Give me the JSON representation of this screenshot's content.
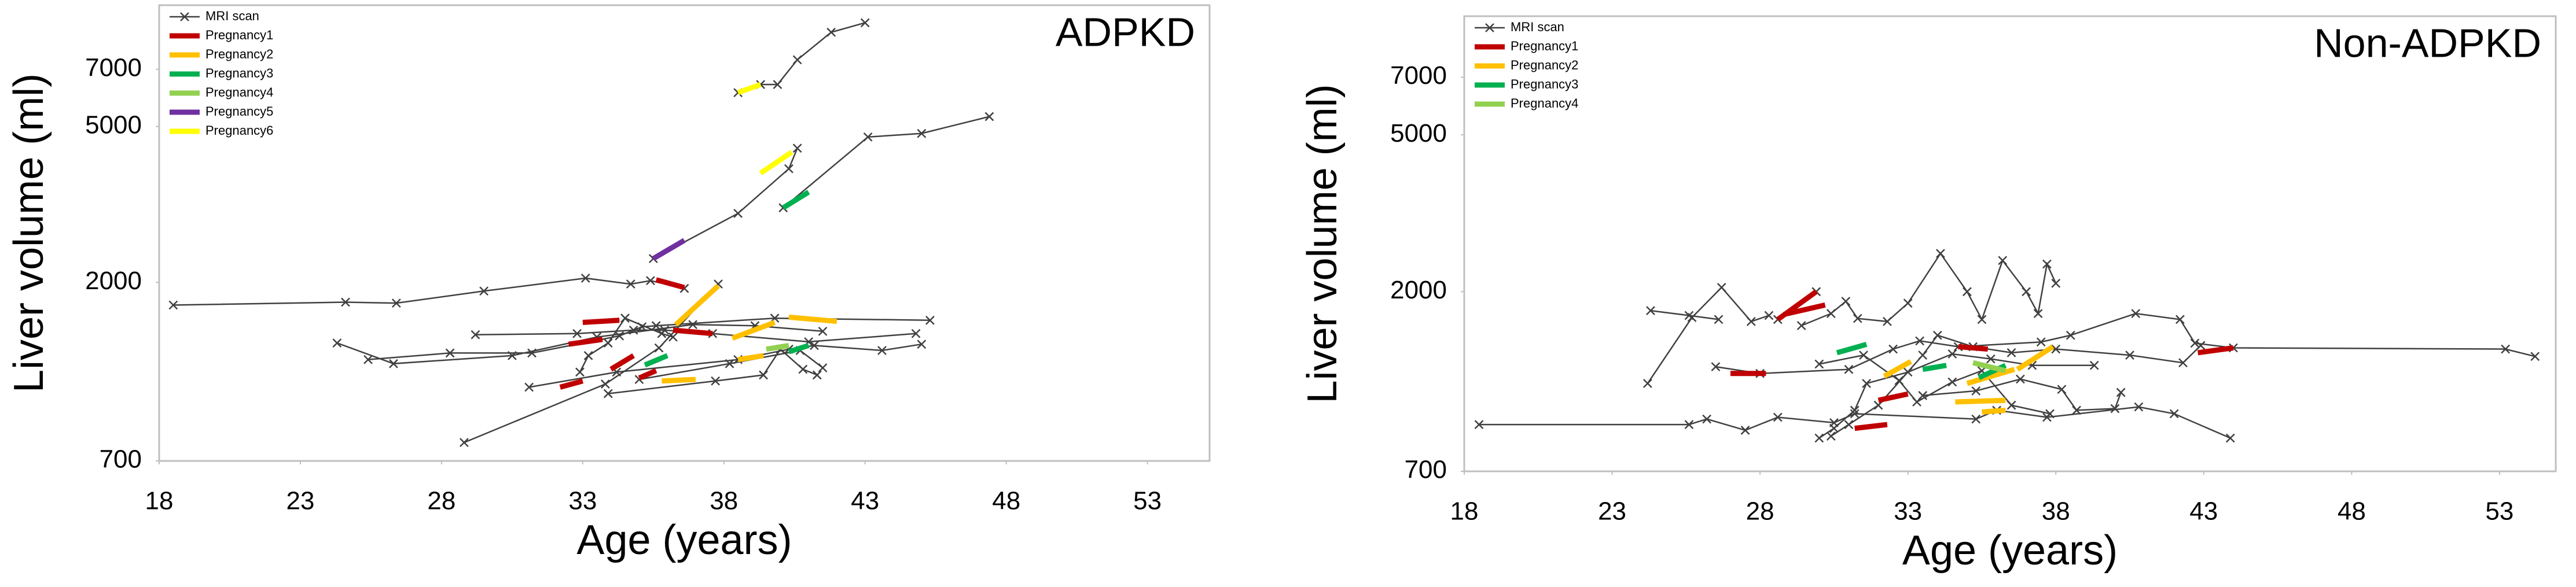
{
  "chart_data": [
    {
      "type": "line",
      "title": "ADPKD",
      "x_label": "Age (years)",
      "y_label": "Liver volume (ml)",
      "log_y": true,
      "xlim": [
        18,
        55.2
      ],
      "ylim": [
        700,
        10200
      ],
      "xticks": [
        18,
        23,
        28,
        33,
        38,
        43,
        48,
        53
      ],
      "yticks": [
        700,
        2000,
        5000,
        7000
      ],
      "legend": "top-left",
      "series": [
        {
          "name": "MRI scan",
          "color": "#404040",
          "marker": "x",
          "x": [
            18.5,
            24.6,
            26.4,
            29.5,
            33.1,
            34.7,
            35.4,
            36.6,
            null,
            28.8,
            33.8,
            35.7,
            37.8,
            null,
            35.5,
            38.5,
            40.3,
            40.6,
            null,
            40.1,
            43.1,
            45,
            47.4,
            null,
            38.5,
            39.3,
            39.9,
            40.6,
            41.8,
            43,
            null,
            24.3,
            26.3,
            30.5,
            33.5,
            36.9,
            39.1,
            41.5,
            null,
            25.4,
            28.3,
            31.2,
            34.3,
            35.1,
            35.6,
            39.8,
            45.3,
            null,
            29.2,
            32.8,
            34.8,
            35.9,
            37.6,
            41,
            44.8,
            null,
            31.1,
            34.2,
            38.5,
            40.3,
            41.2,
            43.6,
            45,
            null,
            32.9,
            33.2,
            33.9,
            34.5,
            35.8,
            36.2,
            null,
            33.9,
            37.7,
            39.4,
            40,
            40.8,
            41.3,
            null,
            35,
            38.2,
            40.7,
            41.5
          ],
          "values": [
            1750,
            1780,
            1770,
            1900,
            2050,
            1980,
            2020,
            1930,
            null,
            780,
            1100,
            1360,
            1980,
            null,
            2300,
            3000,
            3900,
            4400,
            null,
            3100,
            4700,
            4800,
            5300,
            null,
            6100,
            6400,
            6400,
            7400,
            8700,
            9200,
            null,
            1400,
            1240,
            1300,
            1450,
            1560,
            1550,
            1500,
            null,
            1270,
            1320,
            1320,
            1460,
            1540,
            1550,
            1620,
            1600,
            null,
            1470,
            1480,
            1510,
            1510,
            1480,
            1410,
            1480,
            null,
            1080,
            1180,
            1270,
            1350,
            1380,
            1340,
            1390,
            null,
            1180,
            1300,
            1400,
            1620,
            1480,
            1450,
            null,
            1040,
            1120,
            1160,
            1350,
            1200,
            1160,
            null,
            1130,
            1240,
            1340,
            1210
          ]
        },
        {
          "name": "Pregnancy1",
          "color": "#c00000",
          "x": [
            35.6,
            36.6,
            null,
            33,
            34.3,
            null,
            32.5,
            33.7,
            null,
            36.2,
            37.6,
            null,
            34,
            34.8,
            null,
            32.2,
            33,
            null,
            35,
            35.6
          ],
          "values": [
            2030,
            1940,
            null,
            1580,
            1600,
            null,
            1390,
            1430,
            null,
            1510,
            1480,
            null,
            1200,
            1300,
            null,
            1080,
            1120,
            null,
            1140,
            1190
          ]
        },
        {
          "name": "Pregnancy2",
          "color": "#ffc000",
          "x": [
            36.3,
            37.8,
            null,
            40.3,
            42,
            null,
            35.8,
            37,
            null,
            38.5,
            39.4,
            null,
            38.3,
            39.8
          ],
          "values": [
            1560,
            1960,
            null,
            1630,
            1590,
            null,
            1120,
            1130,
            null,
            1270,
            1300,
            null,
            1440,
            1580
          ]
        },
        {
          "name": "Pregnancy3",
          "color": "#00b050",
          "x": [
            40.1,
            41,
            null,
            35.2,
            36,
            null,
            40.3,
            41
          ],
          "values": [
            3100,
            3400,
            null,
            1230,
            1300,
            null,
            1330,
            1380
          ]
        },
        {
          "name": "Pregnancy4",
          "color": "#92d050",
          "x": [
            39.5,
            40.3
          ],
          "values": [
            1350,
            1380
          ]
        },
        {
          "name": "Pregnancy5",
          "color": "#7030a0",
          "x": [
            35.5,
            36.6
          ],
          "values": [
            2300,
            2560
          ]
        },
        {
          "name": "Pregnancy6",
          "color": "#ffff00",
          "x": [
            39.3,
            40.4,
            null,
            38.5,
            39.3
          ],
          "values": [
            3800,
            4300,
            null,
            6100,
            6400
          ]
        }
      ]
    },
    {
      "type": "line",
      "title": "Non-ADPKD",
      "x_label": "Age (years)",
      "y_label": "Liver volume (ml)",
      "log_y": true,
      "xlim": [
        18,
        54.9
      ],
      "ylim": [
        700,
        10000
      ],
      "xticks": [
        18,
        23,
        28,
        33,
        38,
        43,
        48,
        53
      ],
      "yticks": [
        700,
        2000,
        5000,
        7000
      ],
      "legend": "top-left",
      "series": [
        {
          "name": "MRI scan",
          "color": "#404040",
          "marker": "x",
          "x": [
            18.5,
            25.6,
            26.2,
            27.5,
            28.6,
            30.5,
            31.2,
            35.3,
            36,
            37.7,
            40.8,
            42,
            43.9,
            null,
            24.2,
            25.7,
            26.7,
            27.7,
            28.3,
            null,
            24.3,
            25.6,
            26.6,
            null,
            28.6,
            29.9,
            null,
            29.4,
            30.4,
            30.9,
            31.3,
            32.3,
            33,
            34.1,
            35,
            35.5,
            36.2,
            37,
            37.4,
            37.7,
            38,
            null,
            26.5,
            28,
            31,
            32.5,
            33.4,
            34.7,
            37.5,
            38.5,
            40.7,
            42.2,
            42.7,
            44,
            53.2,
            54.2,
            null,
            30,
            30.5,
            31.2,
            31.6,
            33,
            34.5,
            35.8,
            37.2,
            39.3,
            null,
            30.4,
            31,
            32,
            33.5,
            34,
            35.2,
            36.5,
            38,
            40.5,
            42.3,
            42.9,
            null,
            30,
            31.5,
            32.7,
            33.3,
            34.5,
            35.5,
            36.5,
            37.8,
            null,
            33.5,
            35.3,
            36.8,
            38.2,
            38.7,
            40,
            40.2
          ],
          "values": [
            920,
            920,
            950,
            890,
            960,
            930,
            980,
            950,
            1000,
            960,
            1020,
            980,
            850,
            null,
            1170,
            1720,
            2050,
            1680,
            1740,
            null,
            1790,
            1740,
            1700,
            null,
            1700,
            2000,
            null,
            1640,
            1760,
            1890,
            1710,
            1680,
            1870,
            2500,
            2000,
            1700,
            2400,
            2000,
            1760,
            2350,
            2100,
            null,
            1290,
            1240,
            1270,
            1430,
            1500,
            1450,
            1490,
            1550,
            1760,
            1700,
            1480,
            1440,
            1430,
            1370,
            null,
            850,
            900,
            1000,
            1170,
            1250,
            1390,
            1350,
            1300,
            1300,
            null,
            860,
            920,
            1030,
            1380,
            1550,
            1450,
            1400,
            1430,
            1380,
            1320,
            1460,
            null,
            1310,
            1380,
            1190,
            1050,
            1180,
            1260,
            1030,
            980,
            null,
            1090,
            1120,
            1200,
            1130,
            1000,
            1010,
            1110
          ]
        },
        {
          "name": "Pregnancy1",
          "color": "#c00000",
          "x": [
            28.6,
            29.9,
            null,
            28.8,
            30.2,
            null,
            27,
            28.2,
            null,
            31.2,
            32.3,
            null,
            34.7,
            35.7,
            null,
            42.8,
            44,
            null,
            32,
            33
          ],
          "values": [
            1700,
            2000,
            null,
            1750,
            1850,
            null,
            1240,
            1240,
            null,
            900,
            920,
            null,
            1450,
            1430,
            null,
            1400,
            1440,
            null,
            1060,
            1100
          ]
        },
        {
          "name": "Pregnancy2",
          "color": "#ffc000",
          "x": [
            32.2,
            33.1,
            null,
            34.6,
            36.3,
            null,
            35,
            36.6,
            null,
            35.5,
            36.3,
            null,
            36.7,
            37.9
          ],
          "values": [
            1220,
            1330,
            null,
            1050,
            1060,
            null,
            1170,
            1270,
            null,
            990,
            1000,
            null,
            1270,
            1450
          ]
        },
        {
          "name": "Pregnancy3",
          "color": "#00b050",
          "x": [
            30.6,
            31.6,
            null,
            35.4,
            36.3,
            null,
            33.5,
            34.3
          ],
          "values": [
            1400,
            1470,
            null,
            1210,
            1300,
            null,
            1270,
            1300
          ]
        },
        {
          "name": "Pregnancy4",
          "color": "#92d050",
          "x": [
            35.2,
            36.3
          ],
          "values": [
            1320,
            1260
          ]
        }
      ]
    }
  ]
}
